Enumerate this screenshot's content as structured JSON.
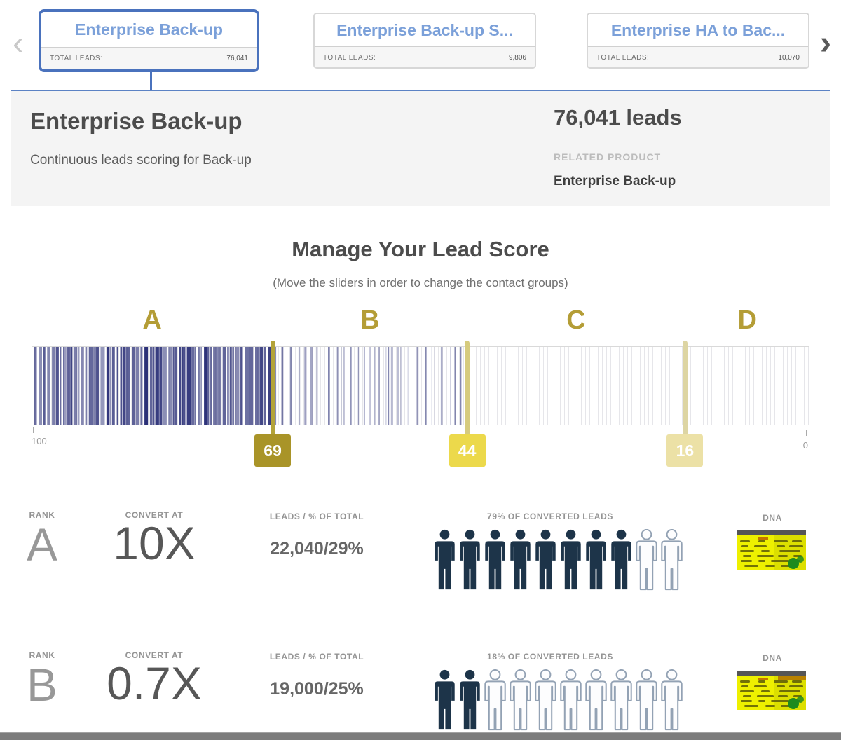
{
  "carousel": {
    "prev_icon": "chevron-left",
    "next_icon": "chevron-right",
    "total_leads_label": "TOTAL LEADS:",
    "cards": [
      {
        "title": "Enterprise Back-up",
        "total_leads": "76,041",
        "selected": true
      },
      {
        "title": "Enterprise Back-up S...",
        "total_leads": "9,806",
        "selected": false
      },
      {
        "title": "Enterprise HA to Bac...",
        "total_leads": "10,070",
        "selected": false
      }
    ]
  },
  "detail_panel": {
    "title": "Enterprise Back-up",
    "subtitle": "Continuous leads scoring for Back-up",
    "leads_count": "76,041 leads",
    "related_product_label": "RELATED PRODUCT",
    "related_product_value": "Enterprise Back-up"
  },
  "lead_score": {
    "title": "Manage Your Lead Score",
    "subtitle": "(Move the sliders in order to change the contact groups)",
    "scale_max_label": "100",
    "scale_min_label": "0",
    "groups": [
      "A",
      "B",
      "C",
      "D"
    ],
    "group_label_color": "#b49d36",
    "sliders": [
      {
        "value": "69",
        "flag_color": "#a99428",
        "stem_color": "#b3a339"
      },
      {
        "value": "44",
        "flag_color": "#ecd94b",
        "stem_color": "#d6cb7e"
      },
      {
        "value": "16",
        "flag_color": "#ece1a6",
        "stem_color": "#ddd5a3"
      }
    ],
    "histogram": {
      "bar_color": "#2c3178",
      "comb_color": "#e3e3e8",
      "border_color": "#d9d9d9"
    }
  },
  "rank_rows": [
    {
      "rank_label": "RANK",
      "rank": "A",
      "convert_label": "CONVERT AT",
      "convert_value": "10X",
      "leads_label": "LEADS / % OF TOTAL",
      "leads_value": "22,040/29%",
      "converted_label": "79% OF CONVERTED LEADS",
      "people_filled": 8,
      "people_total": 10,
      "dna_label": "DNA"
    },
    {
      "rank_label": "RANK",
      "rank": "B",
      "convert_label": "CONVERT AT",
      "convert_value": "0.7X",
      "leads_label": "LEADS / % OF TOTAL",
      "leads_value": "19,000/25%",
      "converted_label": "18% OF CONVERTED LEADS",
      "people_filled": 2,
      "people_total": 10,
      "dna_label": "DNA"
    }
  ],
  "colors": {
    "card_title": "#7ba0d9",
    "selected_card_border": "#4a72bd",
    "person_filled": "#1d3449",
    "person_outline": "#93a2b4",
    "dna_top_bar": "#565656",
    "dna_body": "#eef000",
    "dna_marks": "#5c5c08",
    "dna_blob": "#1e8a1e",
    "dna_accent": "#b06a00"
  }
}
